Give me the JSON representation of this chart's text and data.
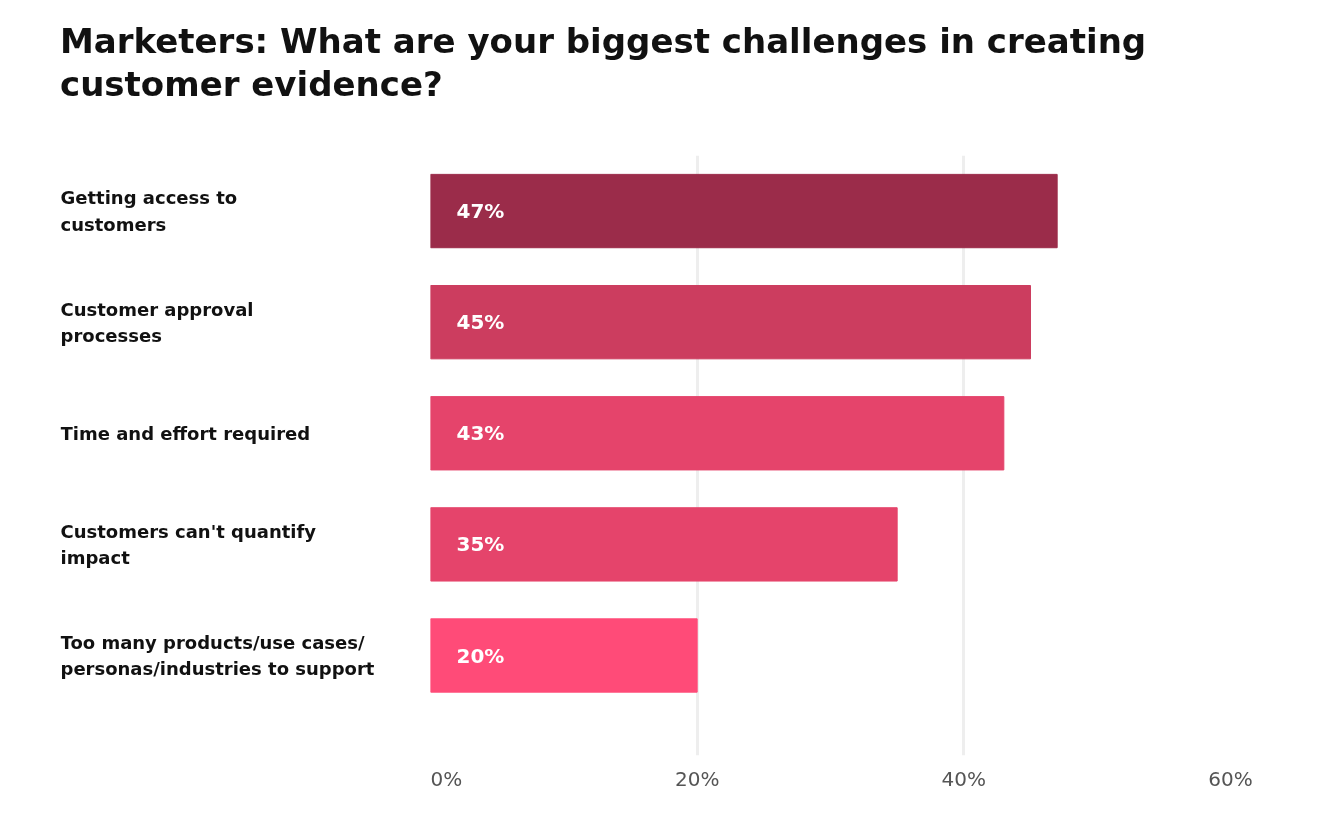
{
  "chart_data": {
    "type": "bar",
    "orientation": "horizontal",
    "title": "Marketers: What are your biggest challenges in creating customer evidence?",
    "categories": [
      "Getting access to\ncustomers",
      "Customer approval\nprocesses",
      "Time and effort required",
      "Customers can't quantify\nimpact",
      "Too many products/use cases/\npersonas/industries to support"
    ],
    "values": [
      47,
      45,
      43,
      35,
      20
    ],
    "colors": [
      "#9b2c4a",
      "#cc3d5f",
      "#e5446b",
      "#e5446b",
      "#ff4b78"
    ],
    "value_labels": [
      "47%",
      "45%",
      "43%",
      "35%",
      "20%"
    ],
    "xlim": [
      0,
      60
    ],
    "xticks": [
      {
        "value": 0,
        "label": "0%"
      },
      {
        "value": 20,
        "label": "20%"
      },
      {
        "value": 40,
        "label": "40%"
      },
      {
        "value": 60,
        "label": "60%"
      }
    ],
    "grid": "x"
  }
}
